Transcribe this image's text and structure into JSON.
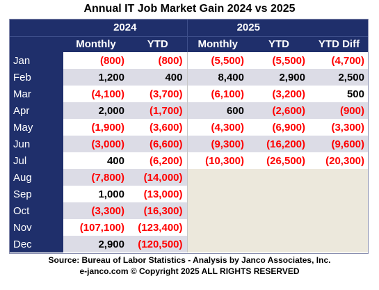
{
  "chart_data": {
    "type": "table",
    "title": "Annual IT  Job Market  Gain 2024 vs 2025",
    "year_headers": [
      "2024",
      "2025"
    ],
    "column_headers": [
      "Monthly",
      "YTD",
      "Monthly",
      "YTD",
      "YTD Diff"
    ],
    "rows": [
      {
        "month": "Jan",
        "cells": [
          "(800)",
          "(800)",
          "(5,500)",
          "(5,500)",
          "(4,700)"
        ]
      },
      {
        "month": "Feb",
        "cells": [
          "1,200",
          "400",
          "8,400",
          "2,900",
          "2,500"
        ]
      },
      {
        "month": "Mar",
        "cells": [
          "(4,100)",
          "(3,700)",
          "(6,100)",
          "(3,200)",
          "500"
        ]
      },
      {
        "month": "Apr",
        "cells": [
          "2,000",
          "(1,700)",
          "600",
          "(2,600)",
          "(900)"
        ]
      },
      {
        "month": "May",
        "cells": [
          "(1,900)",
          "(3,600)",
          "(4,300)",
          "(6,900)",
          "(3,300)"
        ]
      },
      {
        "month": "Jun",
        "cells": [
          "(3,000)",
          "(6,600)",
          "(9,300)",
          "(16,200)",
          "(9,600)"
        ]
      },
      {
        "month": "Jul",
        "cells": [
          "400",
          "(6,200)",
          "(10,300)",
          "(26,500)",
          "(20,300)"
        ]
      },
      {
        "month": "Aug",
        "cells": [
          "(7,800)",
          "(14,000)",
          "",
          "",
          ""
        ]
      },
      {
        "month": "Sep",
        "cells": [
          "1,000",
          "(13,000)",
          "",
          "",
          ""
        ]
      },
      {
        "month": "Oct",
        "cells": [
          "(3,300)",
          "(16,300)",
          "",
          "",
          ""
        ]
      },
      {
        "month": "Nov",
        "cells": [
          "(107,100)",
          "(123,400)",
          "",
          "",
          ""
        ]
      },
      {
        "month": "Dec",
        "cells": [
          "2,900",
          "(120,500)",
          "",
          "",
          ""
        ]
      }
    ],
    "values": {
      "monthly_2024": [
        -800,
        1200,
        -4100,
        2000,
        -1900,
        -3000,
        400,
        -7800,
        1000,
        -3300,
        -107100,
        2900
      ],
      "ytd_2024": [
        -800,
        400,
        -3700,
        -1700,
        -3600,
        -6600,
        -6200,
        -14000,
        -13000,
        -16300,
        -123400,
        -120500
      ],
      "monthly_2025": [
        -5500,
        8400,
        -6100,
        600,
        -4300,
        -9300,
        -10300
      ],
      "ytd_2025": [
        -5500,
        2900,
        -3200,
        -2600,
        -6900,
        -16200,
        -26500
      ],
      "ytd_diff": [
        -4700,
        2500,
        500,
        -900,
        -3300,
        -9600,
        -20300
      ]
    }
  },
  "footer": {
    "source": "Source: Bureau of Labor Statistics - Analysis by Janco Associates, Inc.",
    "copyright": "e-janco.com © Copyright 2025 ALL RIGHTS RESERVED"
  },
  "colors": {
    "header_bg": "#1f2f6b",
    "negative": "#ff0000",
    "shaded_row": "#dcdce6",
    "empty_cell": "#ece8dc"
  }
}
